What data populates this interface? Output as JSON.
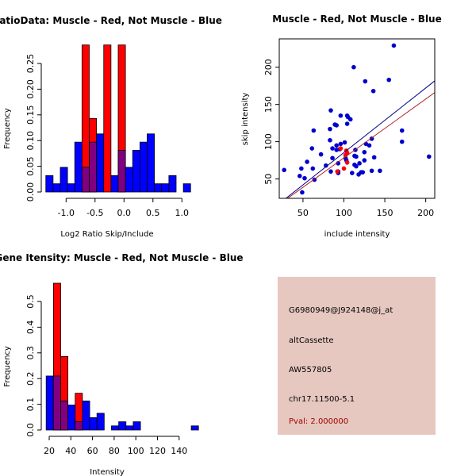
{
  "chart_data": [
    {
      "type": "bar",
      "title": "RatioData: Muscle - Red, Not Muscle - Blue",
      "xlabel": "Log2 Ratio Skip/Include",
      "ylabel": "Frequency",
      "bin_start": -1.35,
      "bin_width": 0.125,
      "xticks": [
        -1.0,
        -0.5,
        0.0,
        0.5,
        1.0
      ],
      "xtick_labels": [
        "-1.0",
        "-0.5",
        "0.0",
        "0.5",
        "1.0"
      ],
      "yticks": [
        0,
        0.05,
        0.1,
        0.15,
        0.2,
        0.25
      ],
      "ytick_labels": [
        "0.00",
        "0.05",
        "0.10",
        "0.15",
        "0.20",
        "0.25"
      ],
      "series": [
        {
          "name": "Not Muscle",
          "color": "#0000ff",
          "values": [
            0.032,
            0.016,
            0.048,
            0.016,
            0.097,
            0.048,
            0.097,
            0.113,
            0,
            0.032,
            0.081,
            0.048,
            0.081,
            0.097,
            0.113,
            0.016,
            0.016,
            0.032,
            0,
            0.016
          ]
        },
        {
          "name": "Muscle",
          "color": "#ff0000",
          "values": [
            0,
            0,
            0,
            0,
            0,
            0.286,
            0.143,
            0,
            0.286,
            0,
            0.286,
            0,
            0,
            0,
            0,
            0,
            0,
            0,
            0,
            0
          ]
        }
      ]
    },
    {
      "type": "scatter",
      "title": "Muscle - Red, Not Muscle - Blue",
      "xlabel": "include intensity",
      "ylabel": "skip intensity",
      "xlim": [
        21,
        211
      ],
      "ylim": [
        24,
        238
      ],
      "xticks": [
        50,
        100,
        150,
        200
      ],
      "yticks": [
        50,
        100,
        150,
        200
      ],
      "series": [
        {
          "name": "Not Muscle",
          "color": "#0000cc",
          "points": [
            [
              27,
              62
            ],
            [
              48,
              64
            ],
            [
              46,
              54
            ],
            [
              52,
              51
            ],
            [
              49,
              32
            ],
            [
              55,
              73
            ],
            [
              61,
              91
            ],
            [
              63,
              115
            ],
            [
              62,
              64
            ],
            [
              64,
              49
            ],
            [
              72,
              83
            ],
            [
              78,
              68
            ],
            [
              84,
              142
            ],
            [
              83,
              117
            ],
            [
              83,
              102
            ],
            [
              84,
              60
            ],
            [
              86,
              91
            ],
            [
              86,
              78
            ],
            [
              89,
              123
            ],
            [
              91,
              122
            ],
            [
              91,
              95
            ],
            [
              91,
              89
            ],
            [
              93,
              60
            ],
            [
              93,
              71
            ],
            [
              93,
              58
            ],
            [
              96,
              135
            ],
            [
              96,
              97
            ],
            [
              95,
              90
            ],
            [
              101,
              99
            ],
            [
              102,
              78
            ],
            [
              103,
              75
            ],
            [
              104,
              135
            ],
            [
              105,
              133
            ],
            [
              104,
              124
            ],
            [
              108,
              130
            ],
            [
              110,
              58
            ],
            [
              112,
              200
            ],
            [
              114,
              89
            ],
            [
              113,
              81
            ],
            [
              115,
              80
            ],
            [
              113,
              69
            ],
            [
              115,
              67
            ],
            [
              119,
              71
            ],
            [
              118,
              56
            ],
            [
              121,
              59
            ],
            [
              123,
              59
            ],
            [
              125,
              75
            ],
            [
              125,
              86
            ],
            [
              126,
              181
            ],
            [
              127,
              97
            ],
            [
              131,
              95
            ],
            [
              134,
              104
            ],
            [
              134,
              61
            ],
            [
              136,
              168
            ],
            [
              137,
              79
            ],
            [
              144,
              61
            ],
            [
              155,
              183
            ],
            [
              161,
              229
            ],
            [
              171,
              115
            ],
            [
              171,
              100
            ],
            [
              204,
              80
            ]
          ]
        },
        {
          "name": "Muscle",
          "color": "#ff0000",
          "points": [
            [
              100,
              64
            ],
            [
              102,
              82
            ],
            [
              104,
              85
            ],
            [
              103,
              88
            ],
            [
              104,
              72
            ],
            [
              96,
              91
            ],
            [
              92,
              60
            ]
          ]
        }
      ],
      "fit_lines": [
        {
          "name": "Not Muscle fit",
          "color": "#00008b",
          "slope": 0.867,
          "intercept": -1.3
        },
        {
          "name": "Muscle fit",
          "color": "#b22222",
          "slope": 0.79,
          "intercept": -0.7
        }
      ]
    },
    {
      "type": "bar",
      "title": "Gene Itensity: Muscle - Red, Not Muscle - Blue",
      "xlabel": "Intensity",
      "ylabel": "Frequency",
      "bin_start": 17.2,
      "bin_width": 6.7,
      "xticks": [
        20,
        40,
        60,
        80,
        100,
        120,
        140
      ],
      "xtick_labels": [
        "20",
        "40",
        "60",
        "80",
        "100",
        "120",
        "140"
      ],
      "yticks": [
        0,
        0.1,
        0.2,
        0.3,
        0.4,
        0.5
      ],
      "ytick_labels": [
        "0.0",
        "0.1",
        "0.2",
        "0.3",
        "0.4",
        "0.5"
      ],
      "series": [
        {
          "name": "Not Muscle",
          "color": "#0000ff",
          "values": [
            0.21,
            0.21,
            0.113,
            0.097,
            0.032,
            0.113,
            0.048,
            0.065,
            0,
            0.016,
            0.032,
            0.016,
            0.032,
            0,
            0,
            0,
            0,
            0,
            0,
            0,
            0.016
          ]
        },
        {
          "name": "Muscle",
          "color": "#ff0000",
          "values": [
            0,
            0.571,
            0.286,
            0,
            0.143,
            0,
            0,
            0,
            0,
            0,
            0,
            0,
            0,
            0,
            0,
            0,
            0,
            0,
            0,
            0,
            0
          ]
        }
      ]
    }
  ],
  "info_panel": {
    "background": "#e6c8c0",
    "probe_id": "G6980949@J924148@j_at",
    "event_type": "altCassette",
    "accession": "AW557805",
    "location": "chr17.11500-5.1",
    "pval": "Pval: 2.000000",
    "pval_color": "#a00000"
  }
}
